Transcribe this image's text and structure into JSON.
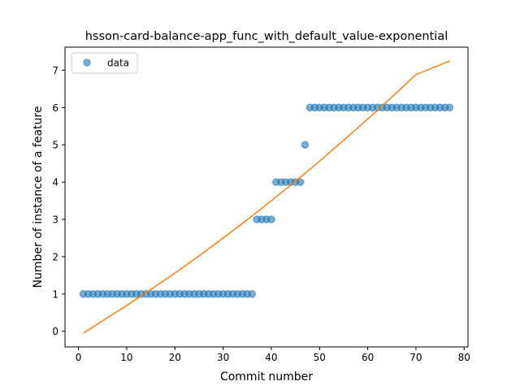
{
  "chart_data": {
    "type": "scatter",
    "title": "hsson-card-balance-app_func_with_default_value-exponential",
    "xlabel": "Commit number",
    "ylabel": "Number of instance of a feature",
    "xlim": [
      -2.8,
      80.8
    ],
    "ylim": [
      -0.42,
      7.62
    ],
    "xticks": [
      0,
      10,
      20,
      30,
      40,
      50,
      60,
      70,
      80
    ],
    "yticks": [
      0,
      1,
      2,
      3,
      4,
      5,
      6,
      7
    ],
    "grid": false,
    "legend_position": "upper left",
    "series": [
      {
        "name": "data",
        "kind": "scatter",
        "color": "#1f77b4",
        "points": [
          [
            1,
            1
          ],
          [
            2,
            1
          ],
          [
            3,
            1
          ],
          [
            4,
            1
          ],
          [
            5,
            1
          ],
          [
            6,
            1
          ],
          [
            7,
            1
          ],
          [
            8,
            1
          ],
          [
            9,
            1
          ],
          [
            10,
            1
          ],
          [
            11,
            1
          ],
          [
            12,
            1
          ],
          [
            13,
            1
          ],
          [
            14,
            1
          ],
          [
            15,
            1
          ],
          [
            16,
            1
          ],
          [
            17,
            1
          ],
          [
            18,
            1
          ],
          [
            19,
            1
          ],
          [
            20,
            1
          ],
          [
            21,
            1
          ],
          [
            22,
            1
          ],
          [
            23,
            1
          ],
          [
            24,
            1
          ],
          [
            25,
            1
          ],
          [
            26,
            1
          ],
          [
            27,
            1
          ],
          [
            28,
            1
          ],
          [
            29,
            1
          ],
          [
            30,
            1
          ],
          [
            31,
            1
          ],
          [
            32,
            1
          ],
          [
            33,
            1
          ],
          [
            34,
            1
          ],
          [
            35,
            1
          ],
          [
            36,
            1
          ],
          [
            37,
            3
          ],
          [
            38,
            3
          ],
          [
            39,
            3
          ],
          [
            40,
            3
          ],
          [
            41,
            4
          ],
          [
            42,
            4
          ],
          [
            43,
            4
          ],
          [
            44,
            4
          ],
          [
            45,
            4
          ],
          [
            46,
            4
          ],
          [
            47,
            5
          ],
          [
            48,
            6
          ],
          [
            49,
            6
          ],
          [
            50,
            6
          ],
          [
            51,
            6
          ],
          [
            52,
            6
          ],
          [
            53,
            6
          ],
          [
            54,
            6
          ],
          [
            55,
            6
          ],
          [
            56,
            6
          ],
          [
            57,
            6
          ],
          [
            58,
            6
          ],
          [
            59,
            6
          ],
          [
            60,
            6
          ],
          [
            61,
            6
          ],
          [
            62,
            6
          ],
          [
            63,
            6
          ],
          [
            64,
            6
          ],
          [
            65,
            6
          ],
          [
            66,
            6
          ],
          [
            67,
            6
          ],
          [
            68,
            6
          ],
          [
            69,
            6
          ],
          [
            70,
            6
          ],
          [
            71,
            6
          ],
          [
            72,
            6
          ],
          [
            73,
            6
          ],
          [
            74,
            6
          ],
          [
            75,
            6
          ],
          [
            76,
            6
          ],
          [
            77,
            6
          ]
        ]
      },
      {
        "name": "",
        "kind": "line",
        "color": "#ff7f0e",
        "points": [
          [
            1,
            -0.05
          ],
          [
            5,
            0.28
          ],
          [
            10,
            0.69
          ],
          [
            15,
            1.12
          ],
          [
            20,
            1.56
          ],
          [
            25,
            2.02
          ],
          [
            30,
            2.5
          ],
          [
            35,
            2.99
          ],
          [
            40,
            3.5
          ],
          [
            45,
            4.02
          ],
          [
            50,
            4.56
          ],
          [
            55,
            5.12
          ],
          [
            60,
            5.69
          ],
          [
            65,
            6.28
          ],
          [
            70,
            6.88
          ],
          [
            77,
            7.25
          ]
        ]
      }
    ]
  }
}
